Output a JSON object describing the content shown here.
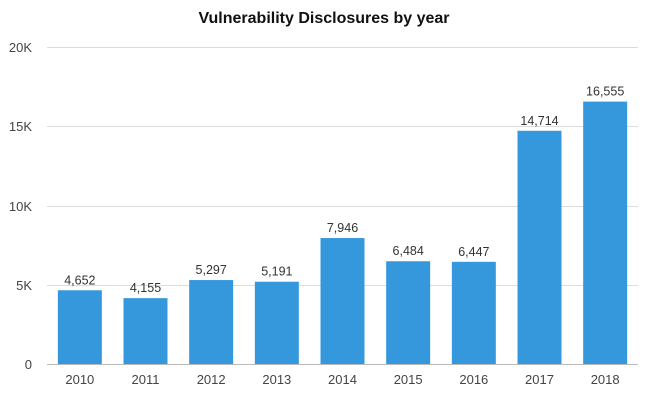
{
  "chart_data": {
    "type": "bar",
    "title": "Vulnerability Disclosures by year",
    "xlabel": "",
    "ylabel": "",
    "categories": [
      "2010",
      "2011",
      "2012",
      "2013",
      "2014",
      "2015",
      "2016",
      "2017",
      "2018"
    ],
    "values": [
      4652,
      4155,
      5297,
      5191,
      7946,
      6484,
      6447,
      14714,
      16555
    ],
    "value_labels": [
      "4,652",
      "4,155",
      "5,297",
      "5,191",
      "7,946",
      "6,484",
      "6,447",
      "14,714",
      "16,555"
    ],
    "ylim": [
      0,
      20000
    ],
    "yticks": [
      0,
      5000,
      10000,
      15000,
      20000
    ],
    "ytick_labels": [
      "0",
      "5K",
      "10K",
      "15K",
      "20K"
    ],
    "grid": true,
    "legend": "none",
    "colors": {
      "bar": "#3598dc",
      "grid": "#dddddd",
      "axis": "#bbbbbb"
    }
  }
}
